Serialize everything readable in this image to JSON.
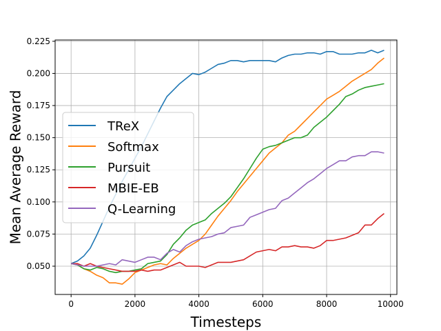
{
  "chart_data": {
    "type": "line",
    "title": "",
    "xlabel": "Timesteps",
    "ylabel": "Mean Average Reward",
    "xlim": [
      -500,
      10200
    ],
    "ylim": [
      0.028,
      0.226
    ],
    "xticks": [
      0,
      2000,
      4000,
      6000,
      8000,
      10000
    ],
    "xtick_labels": [
      "0",
      "2000",
      "4000",
      "6000",
      "8000",
      "10000"
    ],
    "yticks": [
      0.05,
      0.075,
      0.1,
      0.125,
      0.15,
      0.175,
      0.2,
      0.225
    ],
    "ytick_labels": [
      "0.050",
      "0.075",
      "0.100",
      "0.125",
      "0.150",
      "0.175",
      "0.200",
      "0.225"
    ],
    "grid": true,
    "legend_position": "center-left",
    "x": [
      0,
      200,
      400,
      600,
      800,
      1000,
      1200,
      1400,
      1600,
      1800,
      2000,
      2200,
      2400,
      2600,
      2800,
      3000,
      3200,
      3400,
      3600,
      3800,
      4000,
      4200,
      4400,
      4600,
      4800,
      5000,
      5200,
      5400,
      5600,
      5800,
      6000,
      6200,
      6400,
      6600,
      6800,
      7000,
      7200,
      7400,
      7600,
      7800,
      8000,
      8200,
      8400,
      8600,
      8800,
      9000,
      9200,
      9400,
      9600,
      9800
    ],
    "series": [
      {
        "name": "TReX",
        "color": "#1f77b4",
        "values": [
          0.052,
          0.054,
          0.058,
          0.064,
          0.074,
          0.085,
          0.096,
          0.106,
          0.116,
          0.125,
          0.134,
          0.143,
          0.153,
          0.163,
          0.173,
          0.182,
          0.187,
          0.192,
          0.196,
          0.2,
          0.199,
          0.201,
          0.204,
          0.207,
          0.208,
          0.21,
          0.21,
          0.209,
          0.21,
          0.21,
          0.21,
          0.21,
          0.209,
          0.212,
          0.214,
          0.215,
          0.215,
          0.216,
          0.216,
          0.215,
          0.217,
          0.217,
          0.215,
          0.215,
          0.215,
          0.216,
          0.216,
          0.218,
          0.216,
          0.218
        ]
      },
      {
        "name": "Softmax",
        "color": "#ff7f0e",
        "values": [
          0.052,
          0.051,
          0.048,
          0.046,
          0.043,
          0.041,
          0.037,
          0.037,
          0.036,
          0.04,
          0.045,
          0.047,
          0.049,
          0.051,
          0.052,
          0.051,
          0.056,
          0.06,
          0.064,
          0.067,
          0.07,
          0.075,
          0.082,
          0.089,
          0.095,
          0.101,
          0.108,
          0.114,
          0.12,
          0.126,
          0.132,
          0.138,
          0.142,
          0.146,
          0.152,
          0.155,
          0.16,
          0.165,
          0.17,
          0.175,
          0.18,
          0.183,
          0.186,
          0.19,
          0.194,
          0.197,
          0.2,
          0.203,
          0.208,
          0.212
        ]
      },
      {
        "name": "Pursuit",
        "color": "#2ca02c",
        "values": [
          0.052,
          0.051,
          0.048,
          0.047,
          0.049,
          0.048,
          0.046,
          0.045,
          0.046,
          0.046,
          0.047,
          0.048,
          0.052,
          0.053,
          0.054,
          0.059,
          0.067,
          0.072,
          0.078,
          0.082,
          0.084,
          0.086,
          0.091,
          0.095,
          0.099,
          0.104,
          0.111,
          0.118,
          0.126,
          0.134,
          0.141,
          0.143,
          0.144,
          0.146,
          0.148,
          0.15,
          0.15,
          0.152,
          0.158,
          0.162,
          0.166,
          0.171,
          0.176,
          0.182,
          0.184,
          0.187,
          0.189,
          0.19,
          0.191,
          0.192
        ]
      },
      {
        "name": "MBIE-EB",
        "color": "#d62728",
        "values": [
          0.052,
          0.052,
          0.05,
          0.052,
          0.05,
          0.049,
          0.048,
          0.047,
          0.046,
          0.046,
          0.046,
          0.047,
          0.046,
          0.047,
          0.047,
          0.049,
          0.051,
          0.053,
          0.05,
          0.05,
          0.05,
          0.049,
          0.051,
          0.053,
          0.053,
          0.053,
          0.054,
          0.055,
          0.058,
          0.061,
          0.062,
          0.063,
          0.062,
          0.065,
          0.065,
          0.066,
          0.065,
          0.065,
          0.064,
          0.066,
          0.07,
          0.07,
          0.071,
          0.072,
          0.074,
          0.076,
          0.082,
          0.082,
          0.087,
          0.091
        ]
      },
      {
        "name": "Q-Learning",
        "color": "#9467bd",
        "values": [
          0.052,
          0.051,
          0.05,
          0.05,
          0.05,
          0.051,
          0.052,
          0.051,
          0.055,
          0.054,
          0.053,
          0.055,
          0.057,
          0.057,
          0.055,
          0.06,
          0.063,
          0.061,
          0.066,
          0.069,
          0.071,
          0.072,
          0.073,
          0.075,
          0.076,
          0.08,
          0.081,
          0.082,
          0.088,
          0.09,
          0.092,
          0.094,
          0.095,
          0.101,
          0.103,
          0.107,
          0.111,
          0.115,
          0.118,
          0.122,
          0.126,
          0.129,
          0.132,
          0.132,
          0.135,
          0.136,
          0.136,
          0.139,
          0.139,
          0.138
        ]
      }
    ]
  }
}
